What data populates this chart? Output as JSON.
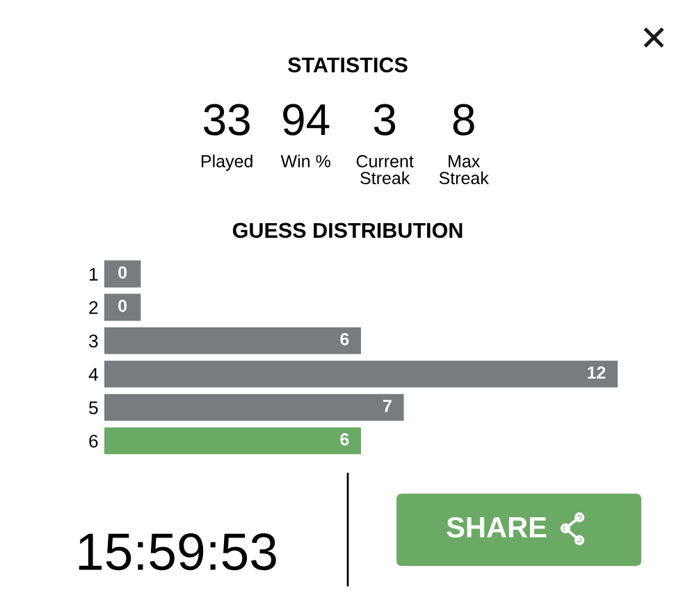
{
  "chart_data": [
    {
      "type": "other",
      "title": "STATISTICS",
      "categories": [
        "Played",
        "Win %",
        "Current\nStreak",
        "Max\nStreak"
      ],
      "values": [
        33,
        94,
        3,
        8
      ],
      "data_labels": true
    },
    {
      "type": "bar",
      "orientation": "horizontal",
      "title": "GUESS DISTRIBUTION",
      "categories": [
        "1",
        "2",
        "3",
        "4",
        "5",
        "6"
      ],
      "values": [
        0,
        0,
        6,
        12,
        7,
        6
      ],
      "colors": [
        "#787c7e",
        "#787c7e",
        "#787c7e",
        "#787c7e",
        "#787c7e",
        "#6aaa64"
      ],
      "data_labels": true,
      "tick_labels": "y"
    },
    {
      "type": "other",
      "annotations": [
        "15:59:53",
        "SHARE"
      ]
    }
  ]
}
